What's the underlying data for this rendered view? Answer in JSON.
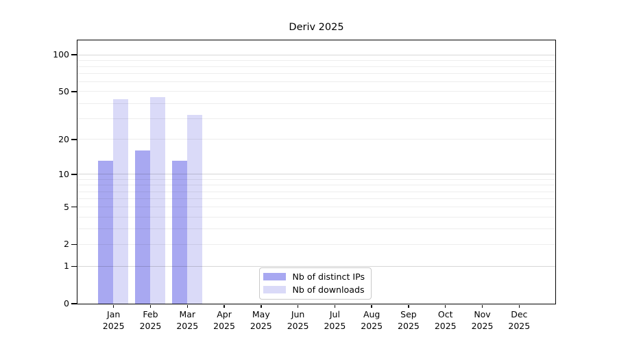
{
  "chart_data": {
    "type": "bar",
    "title": "Deriv 2025",
    "categories": [
      "Jan",
      "Feb",
      "Mar",
      "Apr",
      "May",
      "Jun",
      "Jul",
      "Aug",
      "Sep",
      "Oct",
      "Nov",
      "Dec"
    ],
    "year_label": "2025",
    "series": [
      {
        "name": "Nb of distinct IPs",
        "color": "#a8a8f1",
        "values": [
          13,
          16,
          13,
          0,
          0,
          0,
          0,
          0,
          0,
          0,
          0,
          0
        ]
      },
      {
        "name": "Nb of downloads",
        "color": "#dadaf8",
        "values": [
          43,
          45,
          32,
          0,
          0,
          0,
          0,
          0,
          0,
          0,
          0,
          0
        ]
      }
    ],
    "scale": "log1p",
    "ylim": [
      0,
      130
    ],
    "y_ticks": [
      0,
      1,
      2,
      5,
      10,
      20,
      50,
      100
    ],
    "grid": {
      "on": true,
      "major": [
        1,
        10,
        100
      ],
      "minor": [
        2,
        3,
        4,
        5,
        6,
        7,
        8,
        9,
        20,
        30,
        40,
        50,
        60,
        70,
        80,
        90
      ]
    },
    "legend_position": "lower center inside plot",
    "xlabel": "",
    "ylabel": ""
  }
}
